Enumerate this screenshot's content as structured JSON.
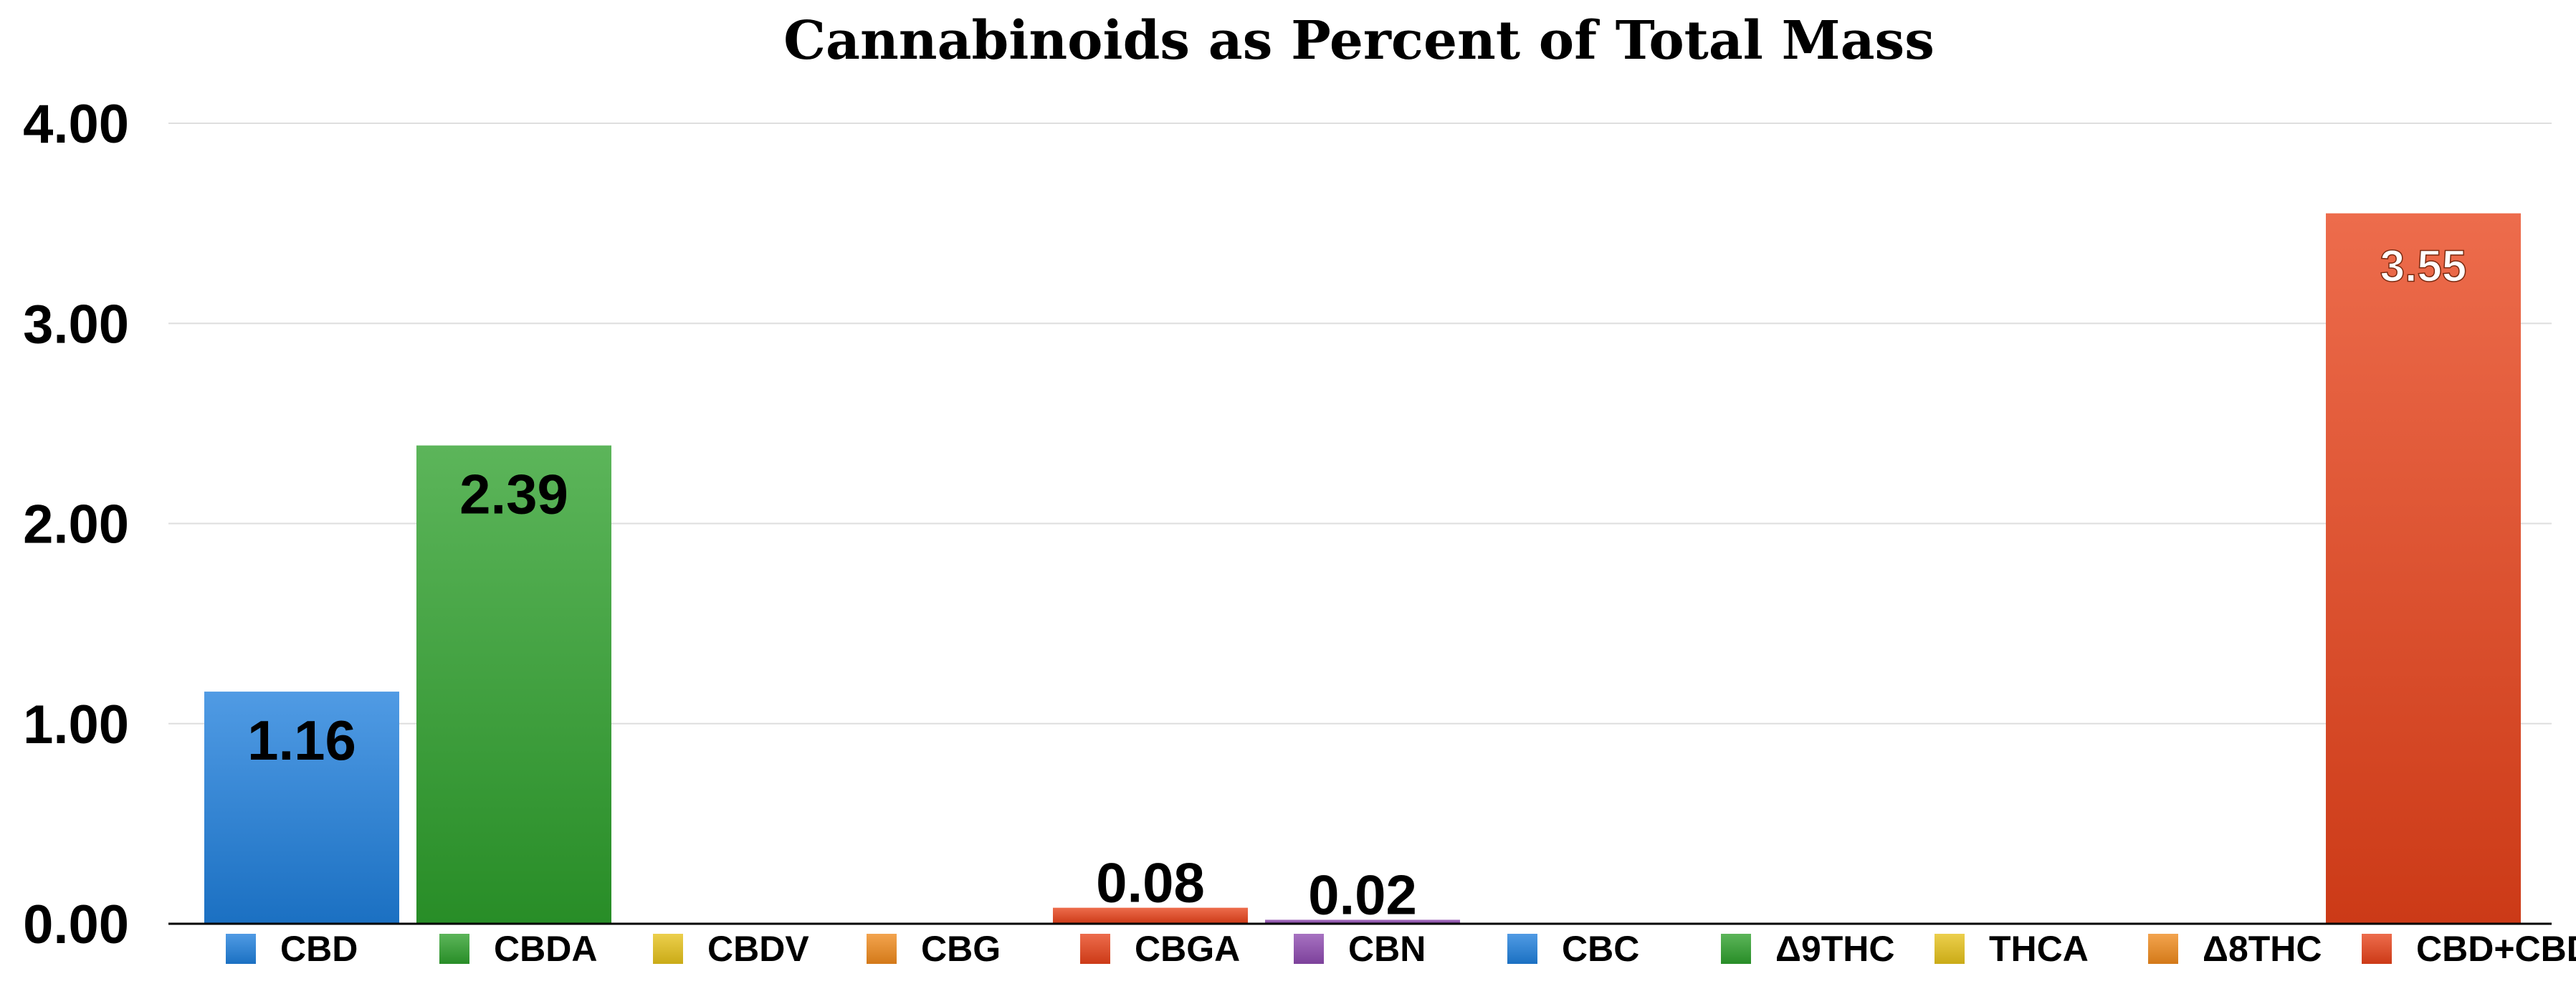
{
  "chart_data": {
    "type": "bar",
    "title": "Cannabinoids as Percent of Total Mass",
    "categories": [
      "CBD",
      "CBDA",
      "CBDV",
      "CBG",
      "CBGA",
      "CBN",
      "CBC",
      "Δ9THC",
      "THCA",
      "Δ8THC",
      "CBD+CBDA"
    ],
    "values": [
      1.16,
      2.39,
      0,
      0,
      0.08,
      0.02,
      0,
      0,
      0,
      0,
      3.55
    ],
    "value_labels": [
      "1.16",
      "2.39",
      "",
      "",
      "0.08",
      "0.02",
      "",
      "",
      "",
      "",
      "3.55"
    ],
    "colors": [
      "#1f7fdc",
      "#2ea02c",
      "#e6c21a",
      "#f08a1c",
      "#e8421a",
      "#8e4ab0",
      "#1f7fdc",
      "#2ea02c",
      "#e6c21a",
      "#f08a1c",
      "#e8421a"
    ],
    "ylim": [
      0,
      4
    ],
    "yticks": [
      "0.00",
      "1.00",
      "2.00",
      "3.00",
      "4.00"
    ],
    "ytick_values": [
      0,
      1,
      2,
      3,
      4
    ],
    "xlabel": "",
    "ylabel": "",
    "grid": true,
    "legend": "bottom"
  }
}
